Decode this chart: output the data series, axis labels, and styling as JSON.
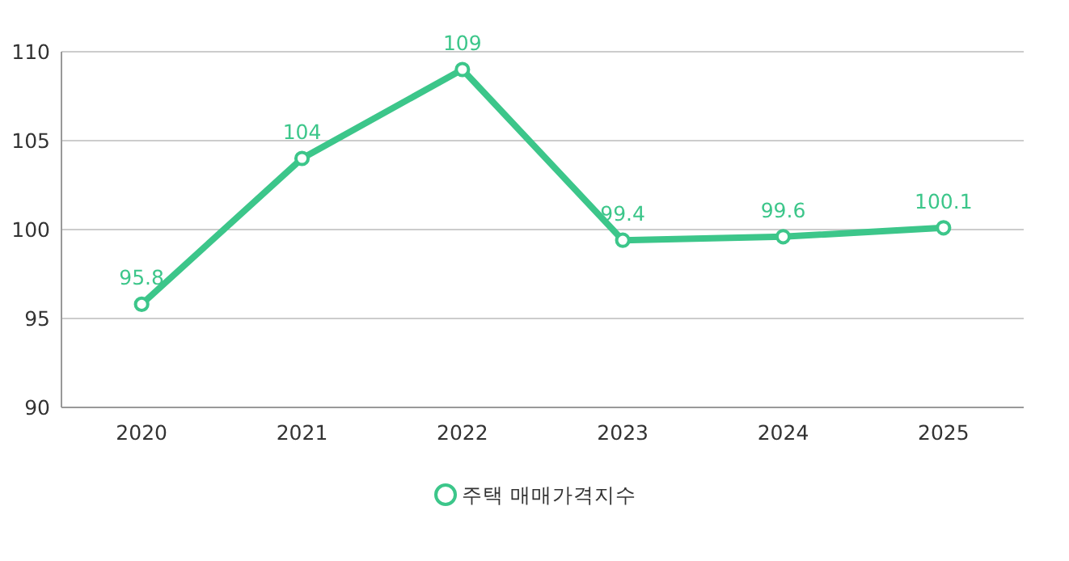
{
  "chart_data": {
    "type": "line",
    "categories": [
      "2020",
      "2021",
      "2022",
      "2023",
      "2024",
      "2025"
    ],
    "series": [
      {
        "name": "주택 매매가격지수",
        "color": "#3cc68a",
        "values": [
          95.8,
          104,
          109,
          99.4,
          99.6,
          100.1
        ]
      }
    ],
    "ylim": [
      90,
      110
    ],
    "yticks": [
      90,
      95,
      100,
      105,
      110
    ],
    "grid": "y",
    "legend": "bottom",
    "marker": "circle",
    "line_style": "solid",
    "data_labels": true
  }
}
